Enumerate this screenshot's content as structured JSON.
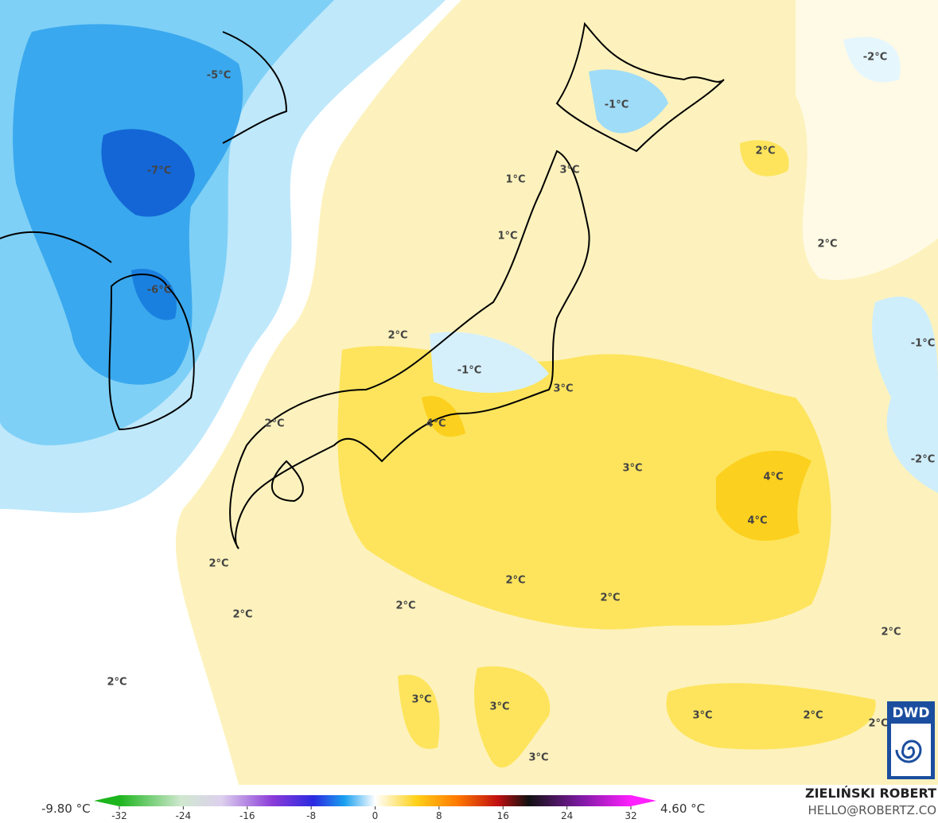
{
  "map": {
    "contour_labels": [
      "-5°C",
      "-1°C",
      "-2°C",
      "-7°C",
      "1°C",
      "3°C",
      "2°C",
      "1°C",
      "2°C",
      "-6°C",
      "2°C",
      "-1°C",
      "-1°C",
      "3°C",
      "2°C",
      "4°C",
      "3°C",
      "4°C",
      "-2°C",
      "4°C",
      "2°C",
      "2°C",
      "2°C",
      "2°C",
      "2°C",
      "2°C",
      "2°C",
      "3°C",
      "3°C",
      "3°C",
      "2°C",
      "2°C",
      "3°C"
    ],
    "logo": "DWD"
  },
  "colorbar": {
    "min_label": "-9.80 °C",
    "max_label": "4.60 °C",
    "ticks": [
      -32,
      -24,
      -16,
      -8,
      0,
      8,
      16,
      24,
      32
    ]
  },
  "credit": {
    "author": "ZIELIŃSKI ROBERT",
    "email": "HELLO@ROBERTZ.CO"
  }
}
